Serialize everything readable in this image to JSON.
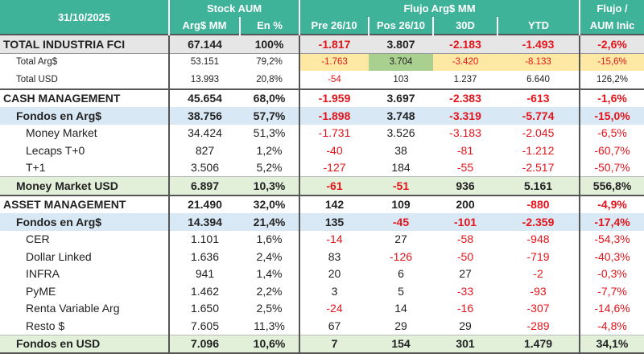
{
  "header": {
    "date": "31/10/2025",
    "stock_group": "Stock AUM",
    "flujo_group": "Flujo Arg$ MM",
    "last_group_line1": "Flujo /",
    "last_group_line2": "AUM Inic",
    "cols": [
      "Arg$ MM",
      "En %",
      "Pre 26/10",
      "Pos 26/10",
      "30D",
      "YTD"
    ]
  },
  "rows": [
    {
      "label": "TOTAL INDUSTRIA FCI",
      "stock": "67.144",
      "pct": "100%",
      "pre": "-1.817",
      "pos": "3.807",
      "d30": "-2.183",
      "ytd": "-1.493",
      "ratio": "-2,6%"
    },
    {
      "label": "Total Arg$",
      "stock": "53.151",
      "pct": "79,2%",
      "pre": "-1.763",
      "pos": "3.704",
      "d30": "-3.420",
      "ytd": "-8.133",
      "ratio": "-15,6%"
    },
    {
      "label": "Total USD",
      "stock": "13.993",
      "pct": "20,8%",
      "pre": "-54",
      "pos": "103",
      "d30": "1.237",
      "ytd": "6.640",
      "ratio": "126,2%"
    },
    {
      "label": "CASH MANAGEMENT",
      "stock": "45.654",
      "pct": "68,0%",
      "pre": "-1.959",
      "pos": "3.697",
      "d30": "-2.383",
      "ytd": "-613",
      "ratio": "-1,6%"
    },
    {
      "label": "Fondos en Arg$",
      "stock": "38.756",
      "pct": "57,7%",
      "pre": "-1.898",
      "pos": "3.748",
      "d30": "-3.319",
      "ytd": "-5.774",
      "ratio": "-15,0%"
    },
    {
      "label": "Money Market",
      "stock": "34.424",
      "pct": "51,3%",
      "pre": "-1.731",
      "pos": "3.526",
      "d30": "-3.183",
      "ytd": "-2.045",
      "ratio": "-6,5%"
    },
    {
      "label": "Lecaps T+0",
      "stock": "827",
      "pct": "1,2%",
      "pre": "-40",
      "pos": "38",
      "d30": "-81",
      "ytd": "-1.212",
      "ratio": "-60,7%"
    },
    {
      "label": "T+1",
      "stock": "3.506",
      "pct": "5,2%",
      "pre": "-127",
      "pos": "184",
      "d30": "-55",
      "ytd": "-2.517",
      "ratio": "-50,7%"
    },
    {
      "label": "Money Market USD",
      "stock": "6.897",
      "pct": "10,3%",
      "pre": "-61",
      "pos": "-51",
      "d30": "936",
      "ytd": "5.161",
      "ratio": "556,8%"
    },
    {
      "label": "ASSET MANAGEMENT",
      "stock": "21.490",
      "pct": "32,0%",
      "pre": "142",
      "pos": "109",
      "d30": "200",
      "ytd": "-880",
      "ratio": "-4,9%"
    },
    {
      "label": "Fondos en Arg$",
      "stock": "14.394",
      "pct": "21,4%",
      "pre": "135",
      "pos": "-45",
      "d30": "-101",
      "ytd": "-2.359",
      "ratio": "-17,4%"
    },
    {
      "label": "CER",
      "stock": "1.101",
      "pct": "1,6%",
      "pre": "-14",
      "pos": "27",
      "d30": "-58",
      "ytd": "-948",
      "ratio": "-54,3%"
    },
    {
      "label": "Dollar Linked",
      "stock": "1.636",
      "pct": "2,4%",
      "pre": "83",
      "pos": "-126",
      "d30": "-50",
      "ytd": "-719",
      "ratio": "-40,3%"
    },
    {
      "label": "INFRA",
      "stock": "941",
      "pct": "1,4%",
      "pre": "20",
      "pos": "6",
      "d30": "27",
      "ytd": "-2",
      "ratio": "-0,3%"
    },
    {
      "label": "PyME",
      "stock": "1.462",
      "pct": "2,2%",
      "pre": "3",
      "pos": "5",
      "d30": "-33",
      "ytd": "-93",
      "ratio": "-7,7%"
    },
    {
      "label": "Renta Variable Arg",
      "stock": "1.650",
      "pct": "2,5%",
      "pre": "-24",
      "pos": "14",
      "d30": "-16",
      "ytd": "-307",
      "ratio": "-14,6%"
    },
    {
      "label": "Resto $",
      "stock": "7.605",
      "pct": "11,3%",
      "pre": "67",
      "pos": "29",
      "d30": "29",
      "ytd": "-289",
      "ratio": "-4,8%"
    },
    {
      "label": "Fondos en USD",
      "stock": "7.096",
      "pct": "10,6%",
      "pre": "7",
      "pos": "154",
      "d30": "301",
      "ytd": "1.479",
      "ratio": "34,1%"
    }
  ],
  "colors": {
    "header": "#3fb39a",
    "negative": "#e4141b",
    "highlight_yellow": "#fde9a4",
    "highlight_green": "#a9d08e",
    "blue_row": "#d9e8f5",
    "green_row": "#e2efd9"
  }
}
